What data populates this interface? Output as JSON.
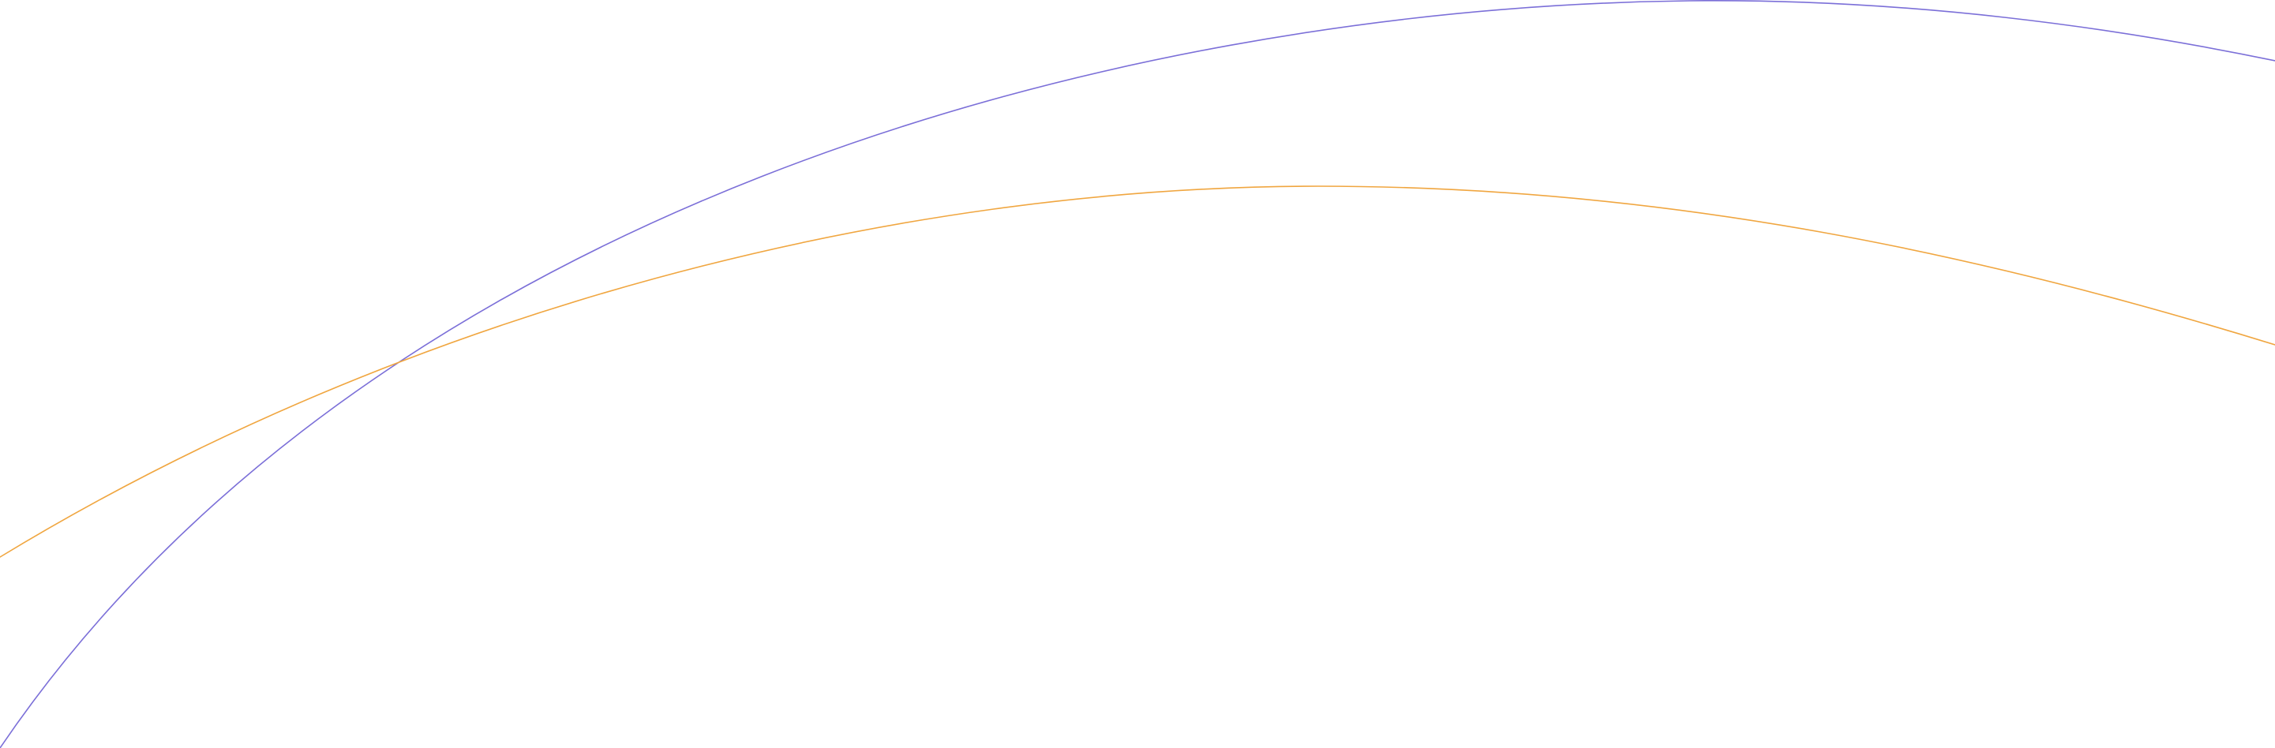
{
  "background_color": "#ffffff",
  "curves": [
    {
      "name": "purple-arc",
      "color": "#7b6fd8"
    },
    {
      "name": "orange-arc",
      "color": "#f0a640"
    }
  ]
}
